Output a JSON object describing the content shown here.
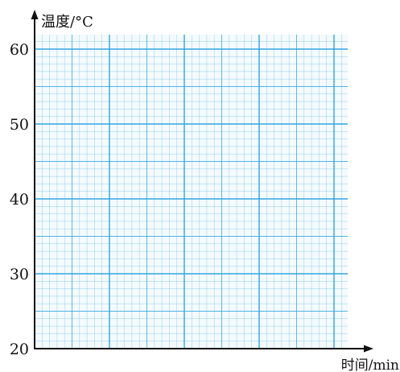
{
  "chart_data": {
    "type": "line",
    "ylabel": "温度/°C",
    "xlabel": "时间/min",
    "ylim": [
      20,
      60
    ],
    "yticks": [
      20,
      30,
      40,
      50,
      60
    ],
    "series": [],
    "grid": true,
    "colors": {
      "grid": "#33a6de",
      "axis": "#111111"
    }
  }
}
